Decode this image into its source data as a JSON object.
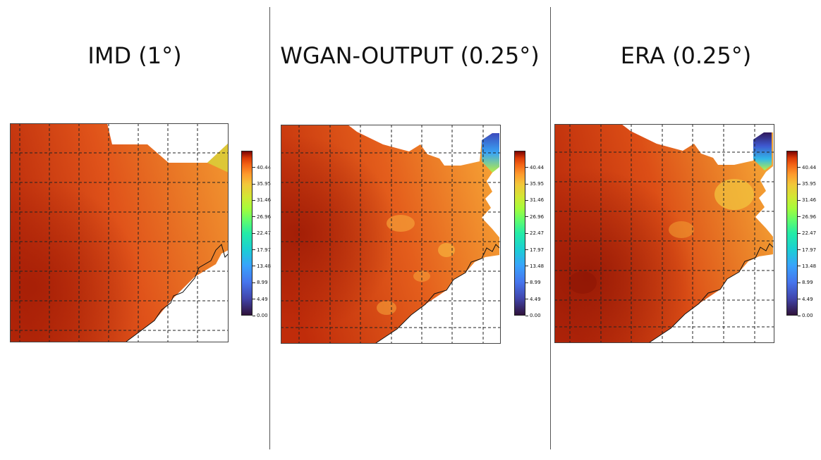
{
  "panels": [
    {
      "title": "IMD (1°)",
      "variant": "imd"
    },
    {
      "title": "WGAN-OUTPUT (0.25°)",
      "variant": "wgan"
    },
    {
      "title": "ERA (0.25°)",
      "variant": "era"
    }
  ],
  "colorbar": {
    "ticks": [
      "0.00",
      "4.49",
      "8.99",
      "13.48",
      "17.97",
      "22.47",
      "26.96",
      "31.46",
      "35.95",
      "40.44"
    ],
    "min": 0,
    "max": 45,
    "colormap": "turbo"
  },
  "colors": {
    "low": "#30123b",
    "mid": "#39a2fc",
    "yellow": "#d1e834",
    "orange": "#f3892a",
    "hot": "#c92c0b",
    "max": "#7a0403"
  }
}
